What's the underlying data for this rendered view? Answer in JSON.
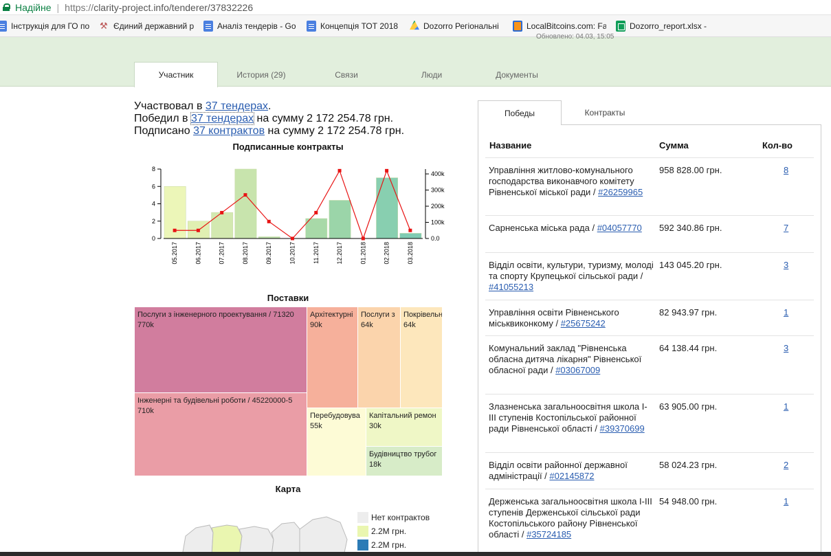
{
  "browser": {
    "secure_label": "Надійне",
    "url_proto": "https://",
    "url_rest": "clarity-project.info/tenderer/37832226",
    "bookmarks": [
      {
        "label": "Інструкція для ГО по",
        "icon": "doc-icon"
      },
      {
        "label": "Єдиний державний р",
        "icon": "gavel-icon"
      },
      {
        "label": "Аналіз тендерів - Go",
        "icon": "doc-icon"
      },
      {
        "label": "Концепція ТОТ 2018",
        "icon": "doc-icon"
      },
      {
        "label": "Dozorro Регіональні",
        "icon": "drive-icon"
      },
      {
        "label": "LocalBitcoins.com: Fa",
        "icon": "bitcoin-icon"
      },
      {
        "label": "Dozorro_report.xlsx -",
        "icon": "sheet-icon"
      }
    ]
  },
  "header": {
    "updated": "Обновлено: 04.03, 15:05",
    "tabs": [
      "Участник",
      "История (29)",
      "Связи",
      "Люди",
      "Документы"
    ]
  },
  "summary": {
    "line1_pre": "Участвовал в ",
    "line1_link": "37 тендерах",
    "line1_post": ".",
    "line2_pre": "Победил в ",
    "line2_link": "37 тендерах",
    "line2_post": " на сумму 2 172 254.78 грн.",
    "line3_pre": "Подписано ",
    "line3_link": "37 контрактов",
    "line3_post": " на сумму 2 172 254.78 грн."
  },
  "chart_title": "Подписанные контракты",
  "chart_data": {
    "type": "bar",
    "categories": [
      "05.2017",
      "06.2017",
      "07.2017",
      "08.2017",
      "09.2017",
      "10.2017",
      "11.2017",
      "12.2017",
      "01.2018",
      "02.2018",
      "03.2018"
    ],
    "series": [
      {
        "values": [
          6,
          2,
          3,
          8,
          0.2,
          0,
          2.3,
          4.4,
          0,
          7,
          0.6
        ],
        "axis": "left",
        "type": "bar"
      },
      {
        "values": [
          50000,
          50000,
          160000,
          270000,
          105000,
          0,
          160000,
          420000,
          0,
          420000,
          50000
        ],
        "axis": "right",
        "type": "line"
      }
    ],
    "left_ticks": [
      "0",
      "2",
      "4",
      "6",
      "8"
    ],
    "right_ticks": [
      "0.0",
      "100k",
      "200k",
      "300k",
      "400k"
    ],
    "ylim_left": [
      0,
      8
    ],
    "ylim_right": [
      0,
      430000
    ],
    "bar_colors": [
      "#ecf6b8",
      "#e0efb2",
      "#d3e9b0",
      "#c8e4ad",
      "#bde0aa",
      "#b4dda8",
      "#a8d9a8",
      "#9bd5a9",
      "#92d2ab",
      "#88cfb0",
      "#7fcbb3"
    ],
    "line_color": "#e81414"
  },
  "treemap_title": "Поставки",
  "treemap": [
    {
      "label": "Послуги з інженерного проектування / 71320",
      "value": "770k",
      "color": "#d17d9e"
    },
    {
      "label": "Інженерні та будівельні роботи / 45220000-5",
      "value": "710k",
      "color": "#ea9da6"
    },
    {
      "label": "Архітектурні",
      "value": "90k",
      "color": "#f6b09b"
    },
    {
      "label": "Послуги з",
      "value": "64k",
      "color": "#fbd4ac"
    },
    {
      "label": "Покрівельн",
      "value": "64k",
      "color": "#fde7bc"
    },
    {
      "label": "Перебудовува",
      "value": "55k",
      "color": "#fdfbd6"
    },
    {
      "label": "Капітальний ремон",
      "value": "30k",
      "color": "#eff7c6"
    },
    {
      "label": "Будівництво трубог",
      "value": "18k",
      "color": "#d7ecc8"
    }
  ],
  "map_title": "Карта",
  "legend": [
    {
      "label": "Нет контрактов",
      "color": "#ededed"
    },
    {
      "label": "2.2M грн.",
      "color": "#eaf6b0"
    },
    {
      "label": "2.2M грн.",
      "color": "#2c7bb6"
    }
  ],
  "right_panel": {
    "tabs": [
      "Победы",
      "Контракты"
    ],
    "headers": {
      "name": "Название",
      "sum": "Сумма",
      "count": "Кол-во"
    },
    "rows": [
      {
        "name": "Управління житлово-комунального господарства виконавчого комітету Рівненської міської ради / ",
        "code": "#26259965",
        "sum": "958 828.00 грн.",
        "count": "8"
      },
      {
        "name": "Сарненська міська рада / ",
        "code": "#04057770",
        "sum": "592 340.86 грн.",
        "count": "7"
      },
      {
        "name": "Відділ освіти, культури, туризму, молоді та спорту Крупецької сільської ради / ",
        "code": "#41055213",
        "sum": "143 045.20 грн.",
        "count": "3"
      },
      {
        "name": "Управління освіти Рівненського міськвиконкому / ",
        "code": "#25675242",
        "sum": "82 943.97 грн.",
        "count": "1"
      },
      {
        "name": "Комунальний заклад \"Рівненська обласна дитяча лікарня\" Рівненської обласної ради / ",
        "code": "#03067009",
        "sum": "64 138.44 грн.",
        "count": "3"
      },
      {
        "name": "Злазненська загальноосвітня школа I-III ступенів Костопільської районної ради Рівненської області / ",
        "code": "#39370699",
        "sum": "63 905.00 грн.",
        "count": "1"
      },
      {
        "name": "Відділ освіти районної державної адміністрації / ",
        "code": "#02145872",
        "sum": "58 024.23 грн.",
        "count": "2"
      },
      {
        "name": "Держенська загальноосвітня школа I-III ступенів Держенської сільської ради Костопільського району Рівненської області / ",
        "code": "#35724185",
        "sum": "54 948.00 грн.",
        "count": "1"
      }
    ]
  }
}
